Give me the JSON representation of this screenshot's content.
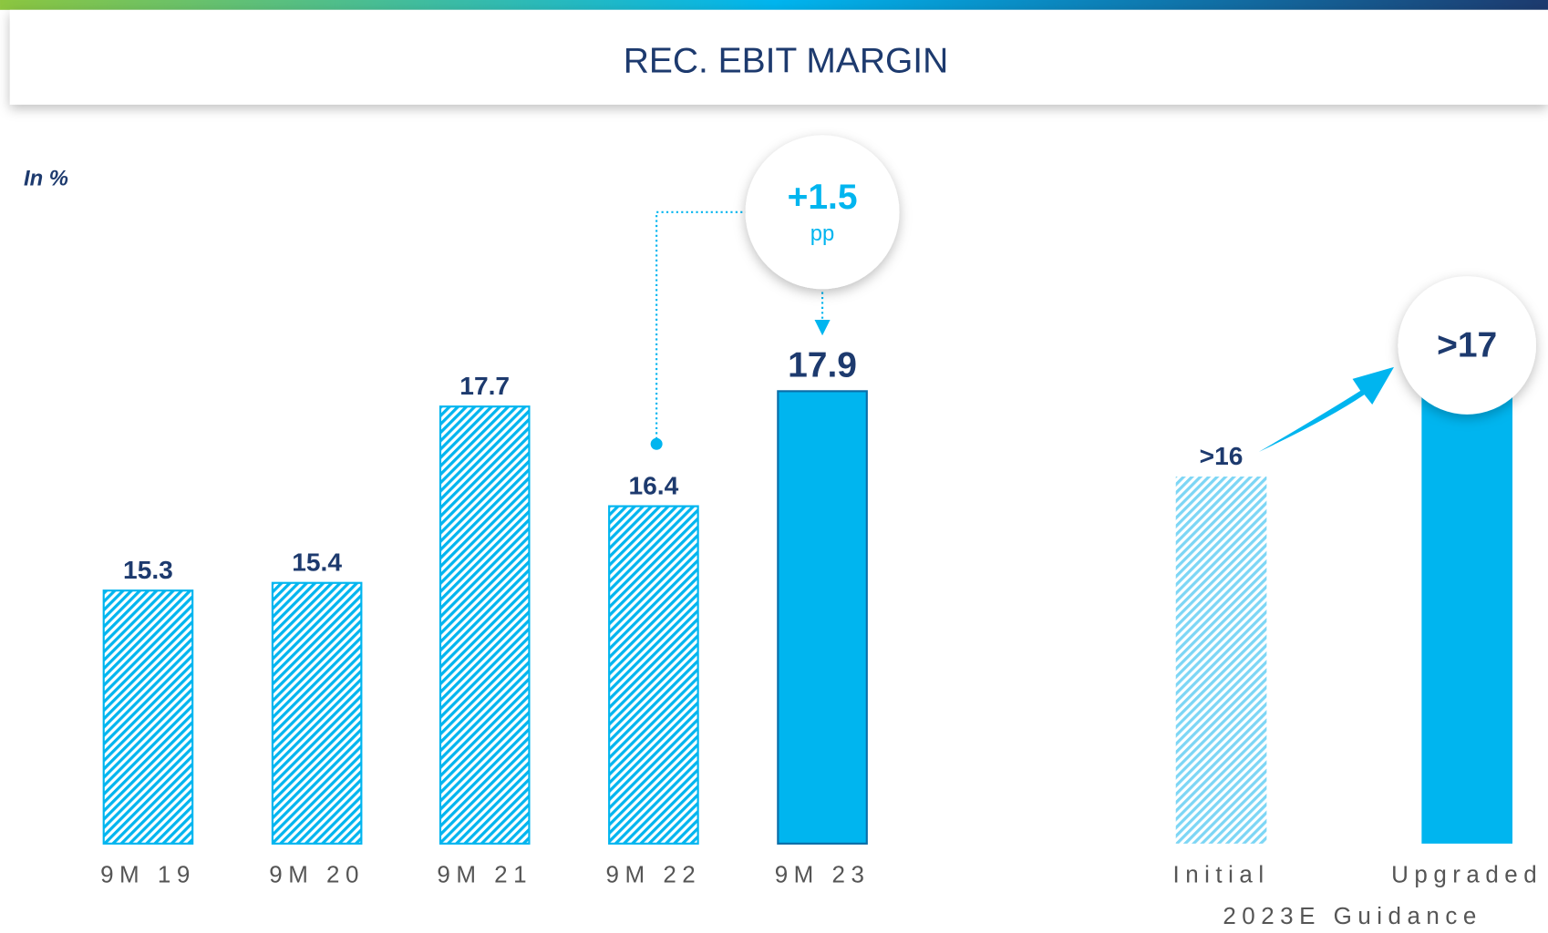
{
  "title": "REC. EBIT MARGIN",
  "unit_label": "In %",
  "chart_data": [
    {
      "type": "bar",
      "categories": [
        "9M 19",
        "9M 20",
        "9M 21",
        "9M 22",
        "9M 23"
      ],
      "values": [
        15.3,
        15.4,
        17.7,
        16.4,
        17.9
      ],
      "color": "#00b5ef",
      "fills": [
        "hatched",
        "hatched",
        "hatched",
        "hatched",
        "solid"
      ],
      "ylim": [
        12,
        19
      ],
      "annotation": "+1.5",
      "annotation_unit": "pp"
    },
    {
      "type": "bar",
      "categories": [
        "Initial",
        "Upgraded"
      ],
      "values": [
        16,
        17
      ],
      "value_labels": [
        ">16",
        ">17"
      ],
      "xlabel": "2023E Guidance",
      "color": "#00b5ef",
      "fills": [
        "hatched",
        "solid"
      ],
      "ylim": [
        12,
        19
      ]
    }
  ]
}
